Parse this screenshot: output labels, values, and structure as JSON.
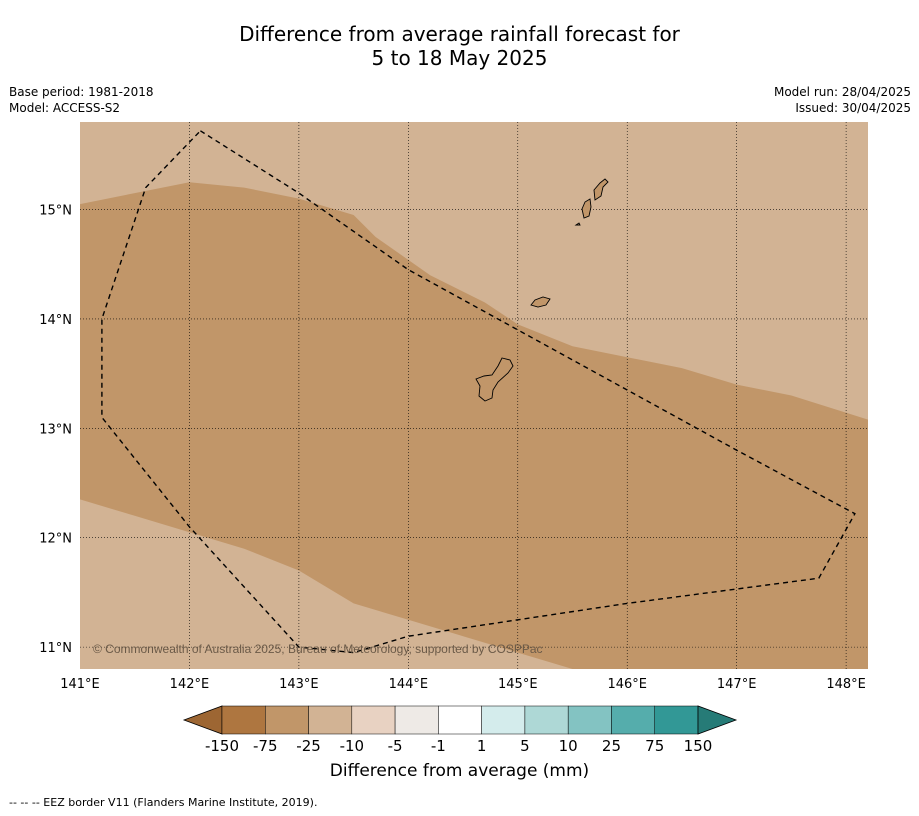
{
  "title": {
    "line1": "Difference from average rainfall forecast for",
    "line2": "5 to 18 May 2025"
  },
  "meta": {
    "base_period": "Base period: 1981-2018",
    "model": "Model: ACCESS-S2",
    "model_run": "Model run: 28/04/2025",
    "issued": "Issued: 30/04/2025"
  },
  "map": {
    "lon_range": [
      141,
      148.2
    ],
    "lat_range": [
      10.8,
      15.8
    ],
    "x_ticks": [
      "141°E",
      "142°E",
      "143°E",
      "144°E",
      "145°E",
      "146°E",
      "147°E",
      "148°E"
    ],
    "y_ticks": [
      "15°N",
      "14°N",
      "13°N",
      "12°N",
      "11°N"
    ],
    "copyright": "© Commonwealth of Australia 2025, Bureau of Meteorology, supported by COSPPac",
    "fill_colors": {
      "minus25_10": "#d2b394",
      "minus75_25": "#c19669"
    },
    "eez_border": [
      [
        142.1,
        15.72
      ],
      [
        143.0,
        15.15
      ],
      [
        144.0,
        14.45
      ],
      [
        145.0,
        13.9
      ],
      [
        146.0,
        13.35
      ],
      [
        147.0,
        12.8
      ],
      [
        148.08,
        12.22
      ],
      [
        147.75,
        11.63
      ],
      [
        146.0,
        11.4
      ],
      [
        145.0,
        11.25
      ],
      [
        144.0,
        11.1
      ],
      [
        143.5,
        10.95
      ],
      [
        143.0,
        11.0
      ],
      [
        142.0,
        12.1
      ],
      [
        141.2,
        13.1
      ],
      [
        141.2,
        14.0
      ],
      [
        141.6,
        15.2
      ],
      [
        142.1,
        15.72
      ]
    ],
    "band_upper": [
      [
        141.0,
        15.05
      ],
      [
        141.5,
        15.15
      ],
      [
        142.0,
        15.25
      ],
      [
        142.5,
        15.2
      ],
      [
        143.0,
        15.1
      ],
      [
        143.5,
        14.95
      ],
      [
        143.7,
        14.75
      ],
      [
        144.2,
        14.4
      ],
      [
        144.7,
        14.15
      ],
      [
        145.0,
        13.95
      ],
      [
        145.5,
        13.75
      ],
      [
        146.0,
        13.65
      ],
      [
        146.5,
        13.55
      ],
      [
        147.0,
        13.4
      ],
      [
        147.5,
        13.3
      ],
      [
        148.2,
        13.08
      ]
    ],
    "band_lower": [
      [
        141.0,
        12.35
      ],
      [
        141.5,
        12.2
      ],
      [
        142.0,
        12.05
      ],
      [
        142.5,
        11.9
      ],
      [
        143.0,
        11.7
      ],
      [
        143.5,
        11.4
      ],
      [
        144.0,
        11.25
      ],
      [
        144.5,
        11.1
      ],
      [
        145.0,
        10.95
      ],
      [
        145.5,
        10.8
      ]
    ]
  },
  "colorbar": {
    "labels": [
      "-150",
      "-75",
      "-25",
      "-10",
      "-5",
      "-1",
      "1",
      "5",
      "10",
      "25",
      "75",
      "150"
    ],
    "colors": [
      "#9d6633",
      "#ae7640",
      "#c19669",
      "#d2b394",
      "#e8d2c2",
      "#eeeae6",
      "#ffffff",
      "#d4ecec",
      "#aed8d6",
      "#83c3c2",
      "#55adac",
      "#329896",
      "#267b77"
    ],
    "title": "Difference from average (mm)"
  },
  "footer": "--  --  -- EEZ border V11 (Flanders Marine Institute, 2019)."
}
